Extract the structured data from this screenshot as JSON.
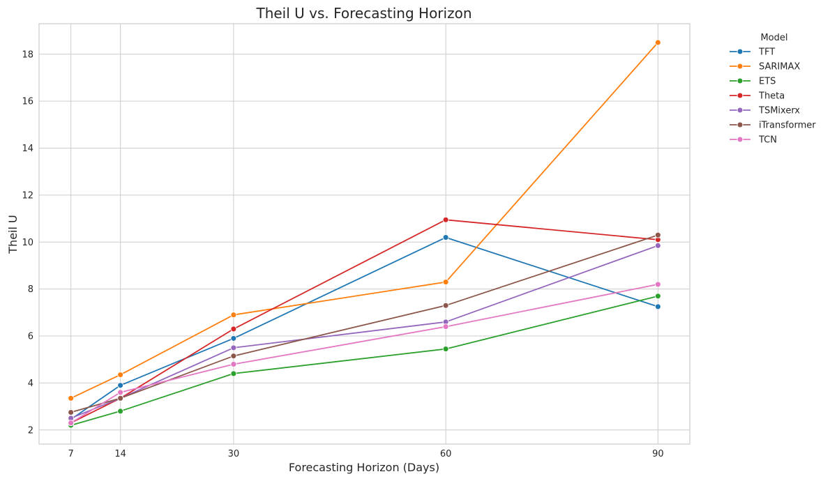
{
  "chart_data": {
    "type": "line",
    "title": "Theil U vs. Forecasting Horizon",
    "xlabel": "Forecasting Horizon (Days)",
    "ylabel": "Theil U",
    "x": [
      7,
      14,
      30,
      60,
      90
    ],
    "xticks": [
      "7",
      "14",
      "30",
      "60",
      "90"
    ],
    "xlim": [
      2.5,
      94.5
    ],
    "yticks": [
      "2",
      "4",
      "6",
      "8",
      "10",
      "12",
      "14",
      "16",
      "18"
    ],
    "ylim": [
      1.4,
      19.3
    ],
    "grid": true,
    "legend": {
      "title": "Model",
      "placement": "outside-top-right"
    },
    "series": [
      {
        "name": "TFT",
        "color": "#1f77b4",
        "values": [
          2.45,
          3.9,
          5.9,
          10.2,
          7.25
        ]
      },
      {
        "name": "SARIMAX",
        "color": "#ff7f0e",
        "values": [
          3.35,
          4.35,
          6.9,
          8.3,
          18.5
        ]
      },
      {
        "name": "ETS",
        "color": "#2ca02c",
        "values": [
          2.2,
          2.8,
          4.4,
          5.45,
          7.7
        ]
      },
      {
        "name": "Theta",
        "color": "#d62728",
        "values": [
          2.3,
          3.35,
          6.3,
          10.95,
          10.1
        ]
      },
      {
        "name": "TSMixerx",
        "color": "#9467bd",
        "values": [
          2.5,
          3.35,
          5.5,
          6.6,
          9.85
        ]
      },
      {
        "name": "iTransformer",
        "color": "#8c564b",
        "values": [
          2.75,
          3.35,
          5.15,
          7.3,
          10.3
        ]
      },
      {
        "name": "TCN",
        "color": "#e377c2",
        "values": [
          2.3,
          3.6,
          4.8,
          6.4,
          8.2
        ]
      }
    ]
  }
}
